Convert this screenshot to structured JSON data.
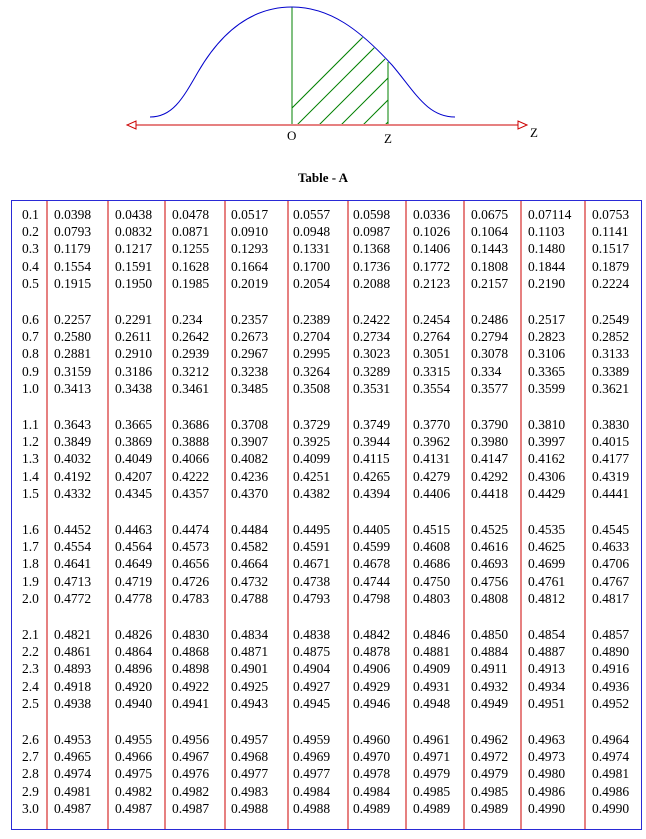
{
  "figure": {
    "origin_label": "O",
    "z_label": "Z",
    "axis_label": "Z",
    "colors": {
      "axis": "#cc0000",
      "curve": "#0000cc",
      "hatch": "#008000"
    }
  },
  "title": "Table - A",
  "table": {
    "colors": {
      "border": "#2a2ad6",
      "divider": "#cc0000"
    },
    "groups": [
      {
        "rows": [
          {
            "z": "0.1",
            "values": [
              "0.0398",
              "0.0438",
              "0.0478",
              "0.0517",
              "0.0557",
              "0.0598",
              "0.0336",
              "0.0675",
              "0.07114",
              "0.0753"
            ]
          },
          {
            "z": "0.2",
            "values": [
              "0.0793",
              "0.0832",
              "0.0871",
              "0.0910",
              "0.0948",
              "0.0987",
              "0.1026",
              "0.1064",
              "0.1103",
              "0.1141"
            ]
          },
          {
            "z": "0.3",
            "values": [
              "0.1179",
              "0.1217",
              "0.1255",
              "0.1293",
              "0.1331",
              "0.1368",
              "0.1406",
              "0.1443",
              "0.1480",
              "0.1517"
            ]
          },
          {
            "z": "0.4",
            "values": [
              "0.1554",
              "0.1591",
              "0.1628",
              "0.1664",
              "0.1700",
              "0.1736",
              "0.1772",
              "0.1808",
              "0.1844",
              "0.1879"
            ]
          },
          {
            "z": "0.5",
            "values": [
              "0.1915",
              "0.1950",
              "0.1985",
              "0.2019",
              "0.2054",
              "0.2088",
              "0.2123",
              "0.2157",
              "0.2190",
              "0.2224"
            ]
          }
        ]
      },
      {
        "rows": [
          {
            "z": "0.6",
            "values": [
              "0.2257",
              "0.2291",
              "0.234",
              "0.2357",
              "0.2389",
              "0.2422",
              "0.2454",
              "0.2486",
              "0.2517",
              "0.2549"
            ]
          },
          {
            "z": "0.7",
            "values": [
              "0.2580",
              "0.2611",
              "0.2642",
              "0.2673",
              "0.2704",
              "0.2734",
              "0.2764",
              "0.2794",
              "0.2823",
              "0.2852"
            ]
          },
          {
            "z": "0.8",
            "values": [
              "0.2881",
              "0.2910",
              "0.2939",
              "0.2967",
              "0.2995",
              "0.3023",
              "0.3051",
              "0.3078",
              "0.3106",
              "0.3133"
            ]
          },
          {
            "z": "0.9",
            "values": [
              "0.3159",
              "0.3186",
              "0.3212",
              "0.3238",
              "0.3264",
              "0.3289",
              "0.3315",
              "0.334",
              "0.3365",
              "0.3389"
            ]
          },
          {
            "z": "1.0",
            "values": [
              "0.3413",
              "0.3438",
              "0.3461",
              "0.3485",
              "0.3508",
              "0.3531",
              "0.3554",
              "0.3577",
              "0.3599",
              "0.3621"
            ]
          }
        ]
      },
      {
        "rows": [
          {
            "z": "1.1",
            "values": [
              "0.3643",
              "0.3665",
              "0.3686",
              "0.3708",
              "0.3729",
              "0.3749",
              "0.3770",
              "0.3790",
              "0.3810",
              "0.3830"
            ]
          },
          {
            "z": "1.2",
            "values": [
              "0.3849",
              "0.3869",
              "0.3888",
              "0.3907",
              "0.3925",
              "0.3944",
              "0.3962",
              "0.3980",
              "0.3997",
              "0.4015"
            ]
          },
          {
            "z": "1.3",
            "values": [
              "0.4032",
              "0.4049",
              "0.4066",
              "0.4082",
              "0.4099",
              "0.4115",
              "0.4131",
              "0.4147",
              "0.4162",
              "0.4177"
            ]
          },
          {
            "z": "1.4",
            "values": [
              "0.4192",
              "0.4207",
              "0.4222",
              "0.4236",
              "0.4251",
              "0.4265",
              "0.4279",
              "0.4292",
              "0.4306",
              "0.4319"
            ]
          },
          {
            "z": "1.5",
            "values": [
              "0.4332",
              "0.4345",
              "0.4357",
              "0.4370",
              "0.4382",
              "0.4394",
              "0.4406",
              "0.4418",
              "0.4429",
              "0.4441"
            ]
          }
        ]
      },
      {
        "rows": [
          {
            "z": "1.6",
            "values": [
              "0.4452",
              "0.4463",
              "0.4474",
              "0.4484",
              "0.4495",
              "0.4405",
              "0.4515",
              "0.4525",
              "0.4535",
              "0.4545"
            ]
          },
          {
            "z": "1.7",
            "values": [
              "0.4554",
              "0.4564",
              "0.4573",
              "0.4582",
              "0.4591",
              "0.4599",
              "0.4608",
              "0.4616",
              "0.4625",
              "0.4633"
            ]
          },
          {
            "z": "1.8",
            "values": [
              "0.4641",
              "0.4649",
              "0.4656",
              "0.4664",
              "0.4671",
              "0.4678",
              "0.4686",
              "0.4693",
              "0.4699",
              "0.4706"
            ]
          },
          {
            "z": "1.9",
            "values": [
              "0.4713",
              "0.4719",
              "0.4726",
              "0.4732",
              "0.4738",
              "0.4744",
              "0.4750",
              "0.4756",
              "0.4761",
              "0.4767"
            ]
          },
          {
            "z": "2.0",
            "values": [
              "0.4772",
              "0.4778",
              "0.4783",
              "0.4788",
              "0.4793",
              "0.4798",
              "0.4803",
              "0.4808",
              "0.4812",
              "0.4817"
            ]
          }
        ]
      },
      {
        "rows": [
          {
            "z": "2.1",
            "values": [
              "0.4821",
              "0.4826",
              "0.4830",
              "0.4834",
              "0.4838",
              "0.4842",
              "0.4846",
              "0.4850",
              "0.4854",
              "0.4857"
            ]
          },
          {
            "z": "2.2",
            "values": [
              "0.4861",
              "0.4864",
              "0.4868",
              "0.4871",
              "0.4875",
              "0.4878",
              "0.4881",
              "0.4884",
              "0.4887",
              "0.4890"
            ]
          },
          {
            "z": "2.3",
            "values": [
              "0.4893",
              "0.4896",
              "0.4898",
              "0.4901",
              "0.4904",
              "0.4906",
              "0.4909",
              "0.4911",
              "0.4913",
              "0.4916"
            ]
          },
          {
            "z": "2.4",
            "values": [
              "0.4918",
              "0.4920",
              "0.4922",
              "0.4925",
              "0.4927",
              "0.4929",
              "0.4931",
              "0.4932",
              "0.4934",
              "0.4936"
            ]
          },
          {
            "z": "2.5",
            "values": [
              "0.4938",
              "0.4940",
              "0.4941",
              "0.4943",
              "0.4945",
              "0.4946",
              "0.4948",
              "0.4949",
              "0.4951",
              "0.4952"
            ]
          }
        ]
      },
      {
        "rows": [
          {
            "z": "2.6",
            "values": [
              "0.4953",
              "0.4955",
              "0.4956",
              "0.4957",
              "0.4959",
              "0.4960",
              "0.4961",
              "0.4962",
              "0.4963",
              "0.4964"
            ]
          },
          {
            "z": "2.7",
            "values": [
              "0.4965",
              "0.4966",
              "0.4967",
              "0.4968",
              "0.4969",
              "0.4970",
              "0.4971",
              "0.4972",
              "0.4973",
              "0.4974"
            ]
          },
          {
            "z": "2.8",
            "values": [
              "0.4974",
              "0.4975",
              "0.4976",
              "0.4977",
              "0.4977",
              "0.4978",
              "0.4979",
              "0.4979",
              "0.4980",
              "0.4981"
            ]
          },
          {
            "z": "2.9",
            "values": [
              "0.4981",
              "0.4982",
              "0.4982",
              "0.4983",
              "0.4984",
              "0.4984",
              "0.4985",
              "0.4985",
              "0.4986",
              "0.4986"
            ]
          },
          {
            "z": "3.0",
            "values": [
              "0.4987",
              "0.4987",
              "0.4987",
              "0.4988",
              "0.4988",
              "0.4989",
              "0.4989",
              "0.4989",
              "0.4990",
              "0.4990"
            ]
          }
        ]
      }
    ]
  }
}
